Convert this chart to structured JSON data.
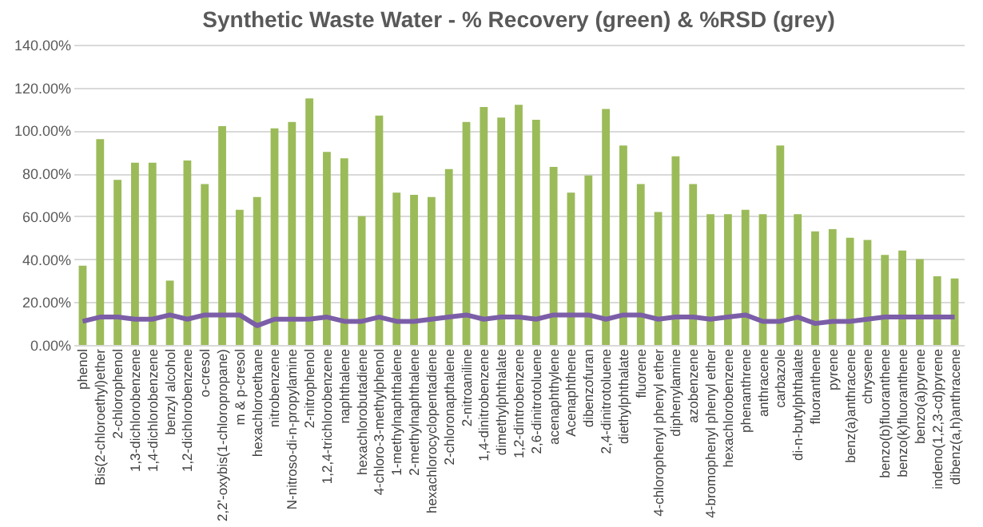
{
  "chart_data": {
    "type": "bar",
    "title": "Synthetic Waste Water - %  Recovery (green)  & %RSD (grey)",
    "categories": [
      "phenol",
      "Bis(2-chloroethyl)ether",
      "2-chlorophenol",
      "1,3-dichlorobenzene",
      "1,4-dichlorobenzene",
      "benzyl alcohol",
      "1,2-dichlorobenzene",
      "o-cresol",
      "2,2'-oxybis(1-chloropropane)",
      "m & p-cresol",
      "hexachloroethane",
      "nitrobenzene",
      "N-nitroso-di-n-propylamine",
      "2-nitrophenol",
      "1,2,4-trichlorobenzene",
      "naphthalene",
      "hexachlorobutadiene",
      "4-chloro-3-methylphenol",
      "1-methylnaphthalene",
      "2-methylnaphthalene",
      "hexachlorocyclopentadiene",
      "2-chloronapthalene",
      "2-nitroaniline",
      "1,4-dinitrobenzene",
      "dimethylphthalate",
      "1,2-dintrobenzene",
      "2,6-dinitrotoluene",
      "acenaphthylene",
      "Acenaphthene",
      "dibenzofuran",
      "2,4-dinitrotoluene",
      "diethylphthalate",
      "fluorene",
      "4-chlorophenyl phenyl ether",
      "diphenylamine",
      "azobenzene",
      "4-bromophenyl phenyl ether",
      "hexachlorobenzene",
      "phenanthrene",
      "anthracene",
      "carbazole",
      "di-n-butylphthalate",
      "fluoranthene",
      "pyrene",
      "benz(a)anthracene",
      "chrysene",
      "benzo(b)fluoranthene",
      "benzo(k)fluoranthene",
      "benzo(a)pyrene",
      "indeno(1,2,3-cd)pyrene",
      "dibenz(a,h)anthracene"
    ],
    "series": [
      {
        "color": "#9bbb59",
        "values": [
          37,
          96,
          77,
          85,
          85,
          30,
          86,
          75,
          102,
          63,
          69,
          101,
          104,
          115,
          90,
          87,
          60,
          107,
          71,
          70,
          69,
          82,
          104,
          111,
          106,
          112,
          105,
          83,
          71,
          79,
          110,
          93,
          75,
          62,
          88,
          75,
          61,
          61,
          63,
          61,
          93,
          61,
          53,
          54,
          50,
          49,
          42,
          44,
          40,
          32,
          31
        ]
      },
      {
        "type": "line",
        "color": "#7b5ea7",
        "values": [
          11,
          13,
          13,
          12,
          12,
          14,
          12,
          14,
          14,
          14,
          9,
          12,
          12,
          12,
          13,
          11,
          11,
          13,
          11,
          11,
          12,
          13,
          14,
          12,
          13,
          13,
          12,
          14,
          14,
          14,
          12,
          14,
          14,
          12,
          13,
          13,
          12,
          13,
          14,
          11,
          11,
          13,
          10,
          11,
          11,
          12,
          13,
          13,
          13,
          13,
          13
        ]
      }
    ],
    "ylim": [
      0,
      140
    ],
    "yticks": [
      {
        "value": 0,
        "label": "0.00%"
      },
      {
        "value": 20,
        "label": "20.00%"
      },
      {
        "value": 40,
        "label": "40.00%"
      },
      {
        "value": 60,
        "label": "60.00%"
      },
      {
        "value": 80,
        "label": "80.00%"
      },
      {
        "value": 100,
        "label": "100.00%"
      },
      {
        "value": 120,
        "label": "120.00%"
      },
      {
        "value": 140,
        "label": "140.00%"
      }
    ],
    "grid": "y",
    "marker": "none",
    "line_style": "solid"
  }
}
